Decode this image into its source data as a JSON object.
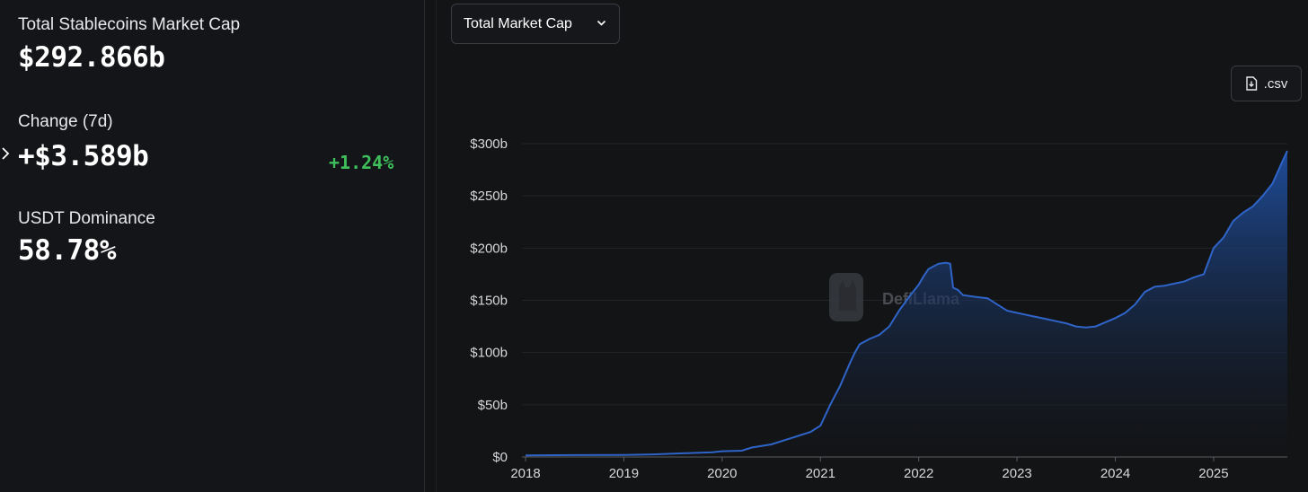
{
  "stats": {
    "total_label": "Total Stablecoins Market Cap",
    "total_value": "$292.866b",
    "change_label": "Change (7d)",
    "change_value": "+$3.589b",
    "change_pct": "+1.24%",
    "dominance_label": "USDT Dominance",
    "dominance_value": "58.78%"
  },
  "controls": {
    "metric_select": "Total Market Cap",
    "csv_label": ".csv"
  },
  "watermark": "DefiLlama",
  "colors": {
    "line": "#2f64c8",
    "area_top": "#1f4fa0",
    "positive": "#3fbf5b"
  },
  "chart_data": {
    "type": "area",
    "title": "",
    "xlabel": "",
    "ylabel": "",
    "x_ticks": [
      "2018",
      "2019",
      "2020",
      "2021",
      "2022",
      "2023",
      "2024",
      "2025"
    ],
    "y_ticks": [
      "$0",
      "$50b",
      "$100b",
      "$150b",
      "$200b",
      "$250b",
      "$300b"
    ],
    "xlim": [
      2018.0,
      2025.75
    ],
    "ylim": [
      0,
      300
    ],
    "grid": true,
    "series": [
      {
        "x": [
          2018.0,
          2018.5,
          2019.0,
          2019.3,
          2019.6,
          2019.9,
          2020.0,
          2020.2,
          2020.3,
          2020.5,
          2020.7,
          2020.9,
          2021.0,
          2021.1,
          2021.2,
          2021.3,
          2021.35,
          2021.4,
          2021.5,
          2021.6,
          2021.7,
          2021.8,
          2021.9,
          2022.0,
          2022.05,
          2022.1,
          2022.2,
          2022.28,
          2022.32,
          2022.35,
          2022.4,
          2022.45,
          2022.6,
          2022.7,
          2022.8,
          2022.9,
          2023.0,
          2023.1,
          2023.2,
          2023.3,
          2023.4,
          2023.5,
          2023.6,
          2023.7,
          2023.8,
          2023.9,
          2024.0,
          2024.1,
          2024.2,
          2024.3,
          2024.4,
          2024.5,
          2024.6,
          2024.7,
          2024.8,
          2024.9,
          2025.0,
          2025.1,
          2025.2,
          2025.3,
          2025.4,
          2025.5,
          2025.6,
          2025.7,
          2025.75
        ],
        "y": [
          1.5,
          1.8,
          2.0,
          2.5,
          3.5,
          4.5,
          5.5,
          6.0,
          9.0,
          12.0,
          18.0,
          24.0,
          30.0,
          50.0,
          68.0,
          90.0,
          100.0,
          108.0,
          113.0,
          117.0,
          125.0,
          140.0,
          153.0,
          165.0,
          173.0,
          180.0,
          185.0,
          186.0,
          185.0,
          162.0,
          160.0,
          155.0,
          153.0,
          152.0,
          146.0,
          140.0,
          138.0,
          136.0,
          134.0,
          132.0,
          130.0,
          128.0,
          125.0,
          124.0,
          125.0,
          129.0,
          133.0,
          138.0,
          146.0,
          158.0,
          163.0,
          164.0,
          166.0,
          168.0,
          172.0,
          175.0,
          200.0,
          210.0,
          226.0,
          234.0,
          240.0,
          250.0,
          262.0,
          283.0,
          293.0
        ]
      }
    ]
  }
}
